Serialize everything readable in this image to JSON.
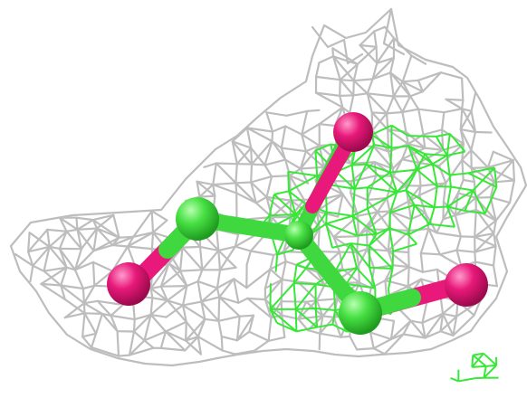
{
  "scene": {
    "description_hidden": "",
    "colors": {
      "background": "#ffffff",
      "mesh_gray": "#b9b9b9",
      "mesh_green": "#33ee33",
      "atom_green": "#44e344",
      "atom_magenta": "#e8197a",
      "bond_green": "#3fd93f"
    },
    "atoms": [
      {
        "id": "C1",
        "element": "carbon"
      },
      {
        "id": "C2",
        "element": "carbon"
      },
      {
        "id": "C3",
        "element": "carbon"
      },
      {
        "id": "O1",
        "element": "oxygen"
      },
      {
        "id": "O2",
        "element": "oxygen"
      },
      {
        "id": "O3",
        "element": "oxygen"
      }
    ]
  }
}
